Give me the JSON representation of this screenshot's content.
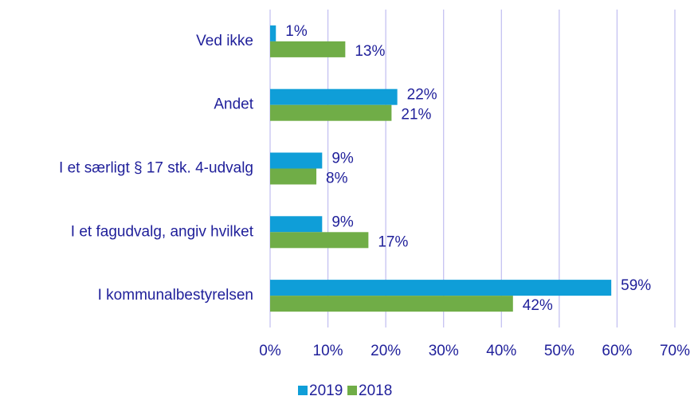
{
  "chart_data": {
    "type": "bar",
    "orientation": "horizontal",
    "categories": [
      "Ved ikke",
      "Andet",
      "I et særligt § 17 stk. 4-udvalg",
      "I et fagudvalg, angiv hvilket",
      "I kommunalbestyrelsen"
    ],
    "series": [
      {
        "name": "2019",
        "color": "#0f9ed8",
        "values": [
          1,
          22,
          9,
          9,
          59
        ],
        "value_labels": [
          "1%",
          "22%",
          "9%",
          "9%",
          "59%"
        ]
      },
      {
        "name": "2018",
        "color": "#70ad47",
        "values": [
          13,
          21,
          8,
          17,
          42
        ],
        "value_labels": [
          "13%",
          "21%",
          "8%",
          "17%",
          "42%"
        ]
      }
    ],
    "xlim": [
      0,
      70
    ],
    "xticks": [
      {
        "value": 0,
        "label": "0%"
      },
      {
        "value": 10,
        "label": "10%"
      },
      {
        "value": 20,
        "label": "20%"
      },
      {
        "value": 30,
        "label": "30%"
      },
      {
        "value": 40,
        "label": "40%"
      },
      {
        "value": 50,
        "label": "50%"
      },
      {
        "value": 60,
        "label": "60%"
      },
      {
        "value": 70,
        "label": "70%"
      }
    ],
    "grid": true,
    "legend": "bottom"
  }
}
